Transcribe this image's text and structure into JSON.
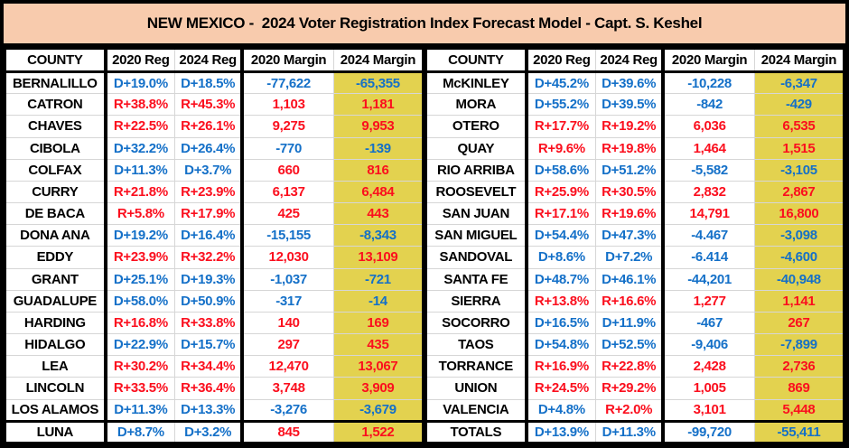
{
  "title": "NEW MEXICO -  2024 Voter Registration Index Forecast Model - Capt. S. Keshel",
  "palette": {
    "title_bg": "#F8CBAD",
    "highlight_column_bg": "#E3D24F",
    "dem_blue": "#1470C8",
    "rep_red": "#FB0F1E",
    "row_line_gray": "#D6D6D6",
    "border_black": "#000000"
  },
  "headers": [
    "COUNTY",
    "2020 Reg",
    "2024 Reg",
    "2020 Margin",
    "2024 Margin"
  ],
  "tables": [
    {
      "name": "left",
      "rows": [
        {
          "county": "BERNALILLO",
          "reg_2020": "D+19.0%",
          "reg_2024": "D+18.5%",
          "margin_2020": "-77,622",
          "margin_2024": "-65,355"
        },
        {
          "county": "CATRON",
          "reg_2020": "R+38.8%",
          "reg_2024": "R+45.3%",
          "margin_2020": "1,103",
          "margin_2024": "1,181"
        },
        {
          "county": "CHAVES",
          "reg_2020": "R+22.5%",
          "reg_2024": "R+26.1%",
          "margin_2020": "9,275",
          "margin_2024": "9,953"
        },
        {
          "county": "CIBOLA",
          "reg_2020": "D+32.2%",
          "reg_2024": "D+26.4%",
          "margin_2020": "-770",
          "margin_2024": "-139"
        },
        {
          "county": "COLFAX",
          "reg_2020": "D+11.3%",
          "reg_2024": "D+3.7%",
          "margin_2020": "660",
          "margin_2024": "816"
        },
        {
          "county": "CURRY",
          "reg_2020": "R+21.8%",
          "reg_2024": "R+23.9%",
          "margin_2020": "6,137",
          "margin_2024": "6,484"
        },
        {
          "county": "DE BACA",
          "reg_2020": "R+5.8%",
          "reg_2024": "R+17.9%",
          "margin_2020": "425",
          "margin_2024": "443"
        },
        {
          "county": "DONA ANA",
          "reg_2020": "D+19.2%",
          "reg_2024": "D+16.4%",
          "margin_2020": "-15,155",
          "margin_2024": "-8,343"
        },
        {
          "county": "EDDY",
          "reg_2020": "R+23.9%",
          "reg_2024": "R+32.2%",
          "margin_2020": "12,030",
          "margin_2024": "13,109"
        },
        {
          "county": "GRANT",
          "reg_2020": "D+25.1%",
          "reg_2024": "D+19.3%",
          "margin_2020": "-1,037",
          "margin_2024": "-721"
        },
        {
          "county": "GUADALUPE",
          "reg_2020": "D+58.0%",
          "reg_2024": "D+50.9%",
          "margin_2020": "-317",
          "margin_2024": "-14"
        },
        {
          "county": "HARDING",
          "reg_2020": "R+16.8%",
          "reg_2024": "R+33.8%",
          "margin_2020": "140",
          "margin_2024": "169"
        },
        {
          "county": "HIDALGO",
          "reg_2020": "D+22.9%",
          "reg_2024": "D+15.7%",
          "margin_2020": "297",
          "margin_2024": "435"
        },
        {
          "county": "LEA",
          "reg_2020": "R+30.2%",
          "reg_2024": "R+34.4%",
          "margin_2020": "12,470",
          "margin_2024": "13,067"
        },
        {
          "county": "LINCOLN",
          "reg_2020": "R+33.5%",
          "reg_2024": "R+36.4%",
          "margin_2020": "3,748",
          "margin_2024": "3,909"
        },
        {
          "county": "LOS ALAMOS",
          "reg_2020": "D+11.3%",
          "reg_2024": "D+13.3%",
          "margin_2020": "-3,276",
          "margin_2024": "-3,679"
        },
        {
          "county": "LUNA",
          "reg_2020": "D+8.7%",
          "reg_2024": "D+3.2%",
          "margin_2020": "845",
          "margin_2024": "1,522"
        }
      ]
    },
    {
      "name": "right",
      "rows": [
        {
          "county": "McKINLEY",
          "reg_2020": "D+45.2%",
          "reg_2024": "D+39.6%",
          "margin_2020": "-10,228",
          "margin_2024": "-6,347"
        },
        {
          "county": "MORA",
          "reg_2020": "D+55.2%",
          "reg_2024": "D+39.5%",
          "margin_2020": "-842",
          "margin_2024": "-429"
        },
        {
          "county": "OTERO",
          "reg_2020": "R+17.7%",
          "reg_2024": "R+19.2%",
          "margin_2020": "6,036",
          "margin_2024": "6,535"
        },
        {
          "county": "QUAY",
          "reg_2020": "R+9.6%",
          "reg_2024": "R+19.8%",
          "margin_2020": "1,464",
          "margin_2024": "1,515"
        },
        {
          "county": "RIO ARRIBA",
          "reg_2020": "D+58.6%",
          "reg_2024": "D+51.2%",
          "margin_2020": "-5,582",
          "margin_2024": "-3,105"
        },
        {
          "county": "ROOSEVELT",
          "reg_2020": "R+25.9%",
          "reg_2024": "R+30.5%",
          "margin_2020": "2,832",
          "margin_2024": "2,867"
        },
        {
          "county": "SAN JUAN",
          "reg_2020": "R+17.1%",
          "reg_2024": "R+19.6%",
          "margin_2020": "14,791",
          "margin_2024": "16,800"
        },
        {
          "county": "SAN MIGUEL",
          "reg_2020": "D+54.4%",
          "reg_2024": "D+47.3%",
          "margin_2020": "-4.467",
          "margin_2024": "-3,098"
        },
        {
          "county": "SANDOVAL",
          "reg_2020": "D+8.6%",
          "reg_2024": "D+7.2%",
          "margin_2020": "-6.414",
          "margin_2024": "-4,600"
        },
        {
          "county": "SANTA FE",
          "reg_2020": "D+48.7%",
          "reg_2024": "D+46.1%",
          "margin_2020": "-44,201",
          "margin_2024": "-40,948"
        },
        {
          "county": "SIERRA",
          "reg_2020": "R+13.8%",
          "reg_2024": "R+16.6%",
          "margin_2020": "1,277",
          "margin_2024": "1,141"
        },
        {
          "county": "SOCORRO",
          "reg_2020": "D+16.5%",
          "reg_2024": "D+11.9%",
          "margin_2020": "-467",
          "margin_2024": "267"
        },
        {
          "county": "TAOS",
          "reg_2020": "D+54.8%",
          "reg_2024": "D+52.5%",
          "margin_2020": "-9,406",
          "margin_2024": "-7,899"
        },
        {
          "county": "TORRANCE",
          "reg_2020": "R+16.9%",
          "reg_2024": "R+22.8%",
          "margin_2020": "2,428",
          "margin_2024": "2,736"
        },
        {
          "county": "UNION",
          "reg_2020": "R+24.5%",
          "reg_2024": "R+29.2%",
          "margin_2020": "1,005",
          "margin_2024": "869"
        },
        {
          "county": "VALENCIA",
          "reg_2020": "D+4.8%",
          "reg_2024": "R+2.0%",
          "margin_2020": "3,101",
          "margin_2024": "5,448"
        },
        {
          "county": "TOTALS",
          "reg_2020": "D+13.9%",
          "reg_2024": "D+11.3%",
          "margin_2020": "-99,720",
          "margin_2024": "-55,411",
          "is_total": true
        }
      ]
    }
  ]
}
